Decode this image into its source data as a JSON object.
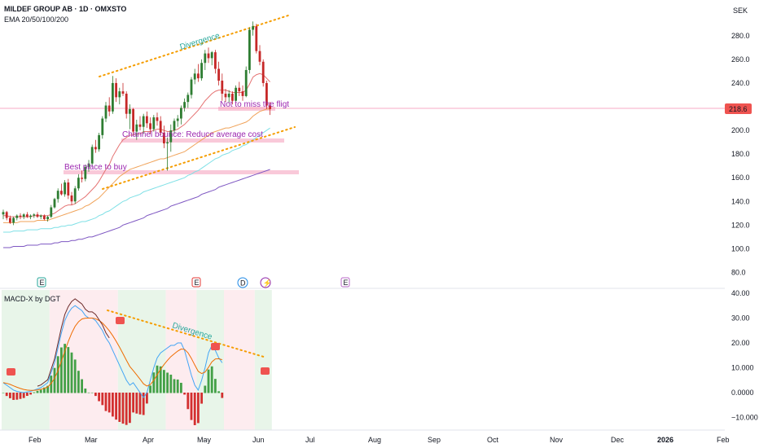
{
  "header": {
    "symbol": "MILDEF GROUP AB · 1D · OMXSTO",
    "indicator": "EMA 20/50/100/200",
    "currency": "SEK",
    "macd_title": "MACD-X by DGT"
  },
  "last_price": "218.6",
  "colors": {
    "up": "#2e7d32",
    "down": "#c62828",
    "ema20": "#e57373",
    "ema50": "#f0a35a",
    "ema100": "#7fe0e6",
    "ema200": "#7e57c2",
    "trend_dots": "#f59d00",
    "annotation_text": "#9c27b0",
    "divergence_text": "#26a69a",
    "zone": "#f8bbd0",
    "price_line": "#f06292",
    "hist_up": "#43a047",
    "hist_down": "#d32f2f",
    "macd_line": "#42a5f5",
    "signal_line": "#ef6c00",
    "bg_green": "#e8f5e9",
    "bg_red": "#fdecef"
  },
  "chart_data": [
    {
      "type": "candlestick",
      "title": "MILDEF GROUP AB · 1D · OMXSTO",
      "y_ticks": [
        "80.0",
        "100.0",
        "120.0",
        "140.0",
        "160.0",
        "180.0",
        "200.0",
        "220.0",
        "240.0",
        "260.0",
        "280.0"
      ],
      "ylim": [
        70,
        300
      ],
      "x_ticks": [
        "Feb",
        "Mar",
        "Apr",
        "May",
        "Jun",
        "Jul",
        "Aug",
        "Sep",
        "Oct",
        "Nov",
        "Dec",
        "2026",
        "Feb"
      ],
      "ohlc": [
        [
          129,
          133,
          125,
          131
        ],
        [
          131,
          132,
          124,
          126
        ],
        [
          126,
          128,
          121,
          122
        ],
        [
          122,
          127,
          120,
          126
        ],
        [
          126,
          129,
          124,
          128
        ],
        [
          128,
          130,
          125,
          127
        ],
        [
          127,
          130,
          125,
          129
        ],
        [
          129,
          131,
          126,
          127
        ],
        [
          127,
          129,
          125,
          128
        ],
        [
          128,
          130,
          126,
          129
        ],
        [
          129,
          131,
          126,
          127
        ],
        [
          127,
          129,
          125,
          128
        ],
        [
          128,
          129,
          124,
          125
        ],
        [
          125,
          128,
          123,
          127
        ],
        [
          127,
          137,
          126,
          135
        ],
        [
          135,
          143,
          134,
          142
        ],
        [
          142,
          151,
          139,
          149
        ],
        [
          149,
          155,
          145,
          146
        ],
        [
          146,
          158,
          144,
          156
        ],
        [
          156,
          159,
          142,
          145
        ],
        [
          145,
          148,
          137,
          140
        ],
        [
          140,
          153,
          138,
          151
        ],
        [
          151,
          163,
          149,
          160
        ],
        [
          160,
          166,
          156,
          159
        ],
        [
          159,
          171,
          157,
          169
        ],
        [
          169,
          175,
          165,
          172
        ],
        [
          172,
          188,
          170,
          186
        ],
        [
          186,
          192,
          181,
          184
        ],
        [
          184,
          198,
          182,
          196
        ],
        [
          196,
          212,
          193,
          210
        ],
        [
          210,
          224,
          207,
          221
        ],
        [
          221,
          228,
          212,
          216
        ],
        [
          216,
          246,
          214,
          240
        ],
        [
          240,
          244,
          224,
          228
        ],
        [
          228,
          236,
          222,
          233
        ],
        [
          233,
          240,
          229,
          231
        ],
        [
          231,
          233,
          210,
          214
        ],
        [
          214,
          222,
          201,
          218
        ],
        [
          218,
          219,
          196,
          199
        ],
        [
          199,
          209,
          192,
          205
        ],
        [
          205,
          212,
          200,
          203
        ],
        [
          203,
          214,
          197,
          212
        ],
        [
          212,
          216,
          202,
          206
        ],
        [
          206,
          211,
          197,
          201
        ],
        [
          201,
          213,
          199,
          211
        ],
        [
          211,
          215,
          204,
          208
        ],
        [
          208,
          212,
          196,
          198
        ],
        [
          198,
          204,
          185,
          189
        ],
        [
          189,
          194,
          166,
          190
        ],
        [
          190,
          205,
          182,
          200
        ],
        [
          200,
          210,
          197,
          208
        ],
        [
          208,
          213,
          203,
          210
        ],
        [
          210,
          221,
          205,
          219
        ],
        [
          219,
          227,
          216,
          224
        ],
        [
          224,
          232,
          219,
          230
        ],
        [
          230,
          245,
          227,
          243
        ],
        [
          243,
          252,
          239,
          248
        ],
        [
          248,
          256,
          241,
          244
        ],
        [
          244,
          260,
          242,
          257
        ],
        [
          257,
          268,
          251,
          265
        ],
        [
          265,
          270,
          257,
          261
        ],
        [
          261,
          267,
          255,
          266
        ],
        [
          266,
          268,
          248,
          252
        ],
        [
          252,
          258,
          238,
          242
        ],
        [
          242,
          248,
          225,
          231
        ],
        [
          231,
          235,
          224,
          228
        ],
        [
          228,
          234,
          223,
          231
        ],
        [
          231,
          233,
          222,
          225
        ],
        [
          225,
          238,
          224,
          236
        ],
        [
          236,
          241,
          229,
          233
        ],
        [
          233,
          238,
          225,
          229
        ],
        [
          229,
          254,
          228,
          251
        ],
        [
          251,
          287,
          248,
          285
        ],
        [
          285,
          292,
          280,
          288
        ],
        [
          288,
          290,
          265,
          267
        ],
        [
          267,
          272,
          255,
          258
        ],
        [
          258,
          260,
          237,
          240
        ],
        [
          240,
          242,
          218,
          221
        ],
        [
          221,
          224,
          213,
          218
        ]
      ],
      "ema20": [
        128,
        128,
        127,
        127,
        127,
        127,
        127,
        127,
        127,
        128,
        128,
        128,
        128,
        128,
        129,
        130,
        132,
        134,
        136,
        137,
        137,
        138,
        140,
        142,
        144,
        147,
        150,
        153,
        157,
        162,
        167,
        171,
        178,
        183,
        188,
        192,
        194,
        196,
        196,
        197,
        197,
        199,
        199,
        199,
        200,
        201,
        201,
        200,
        199,
        199,
        200,
        201,
        203,
        205,
        208,
        211,
        214,
        217,
        221,
        225,
        228,
        231,
        233,
        234,
        234,
        234,
        233,
        232,
        232,
        232,
        232,
        234,
        239,
        245,
        247,
        248,
        247,
        244,
        241
      ],
      "ema50": [
        122,
        122,
        122,
        122,
        122,
        123,
        123,
        123,
        123,
        123,
        124,
        124,
        124,
        124,
        125,
        126,
        127,
        128,
        129,
        130,
        131,
        132,
        133,
        134,
        136,
        137,
        139,
        141,
        143,
        146,
        149,
        152,
        155,
        158,
        161,
        163,
        165,
        167,
        168,
        169,
        170,
        171,
        172,
        173,
        174,
        175,
        176,
        176,
        177,
        178,
        179,
        180,
        181,
        182,
        184,
        186,
        188,
        190,
        192,
        194,
        196,
        198,
        199,
        200,
        201,
        202,
        202,
        203,
        204,
        205,
        206,
        207,
        209,
        212,
        214,
        216,
        217,
        218,
        218
      ],
      "ema100": [
        114,
        114,
        114,
        115,
        115,
        115,
        115,
        116,
        116,
        116,
        116,
        117,
        117,
        117,
        117,
        118,
        118,
        119,
        119,
        120,
        120,
        121,
        122,
        123,
        123,
        124,
        125,
        126,
        128,
        129,
        131,
        132,
        134,
        136,
        138,
        140,
        141,
        143,
        144,
        145,
        146,
        148,
        149,
        150,
        151,
        152,
        153,
        154,
        155,
        156,
        157,
        158,
        159,
        160,
        162,
        163,
        165,
        166,
        168,
        170,
        172,
        174,
        176,
        177,
        179,
        180,
        181,
        183,
        184,
        185,
        187,
        188,
        190,
        192,
        194,
        196,
        198,
        200,
        202
      ],
      "ema200": [
        101,
        101,
        101,
        102,
        102,
        102,
        102,
        103,
        103,
        103,
        103,
        104,
        104,
        104,
        104,
        105,
        105,
        106,
        106,
        106,
        107,
        107,
        108,
        108,
        109,
        110,
        110,
        111,
        112,
        113,
        114,
        115,
        116,
        117,
        118,
        120,
        121,
        122,
        123,
        124,
        125,
        126,
        128,
        129,
        130,
        131,
        132,
        133,
        134,
        136,
        137,
        138,
        139,
        140,
        141,
        142,
        143,
        144,
        146,
        147,
        148,
        149,
        150,
        152,
        153,
        154,
        155,
        156,
        157,
        158,
        159,
        160,
        161,
        162,
        163,
        164,
        165,
        166,
        167
      ]
    },
    {
      "type": "macd",
      "title": "MACD-X by DGT",
      "y_ticks": [
        "−10.000",
        "0.0000",
        "10.000",
        "20.00",
        "30.00",
        "40.00"
      ],
      "ylim": [
        -15,
        42
      ],
      "macd": [
        4,
        3,
        2,
        1,
        0.5,
        0.2,
        0,
        0.3,
        0.5,
        1,
        1.5,
        2,
        3,
        4,
        8,
        12,
        18,
        24,
        29,
        32,
        34,
        35,
        34,
        33,
        31,
        30,
        30,
        29,
        27,
        25,
        22,
        20,
        17,
        14,
        11,
        8,
        5,
        3,
        4,
        2,
        0,
        -2,
        0,
        5,
        10,
        14,
        16,
        17,
        18,
        19,
        19,
        20,
        20,
        17,
        12,
        7,
        3,
        1,
        5,
        10,
        16,
        19,
        17,
        14,
        12
      ]
    }
  ],
  "annotations": {
    "divergence_top": "Divergence",
    "divergence_macd": "Divergence",
    "zone1": "Not to miss the fligt",
    "zone2": "Channel bounce: Reduce average cost",
    "zone3": "Best place to buy"
  },
  "events": [
    "E",
    "E",
    "D",
    "⚡",
    "E"
  ]
}
